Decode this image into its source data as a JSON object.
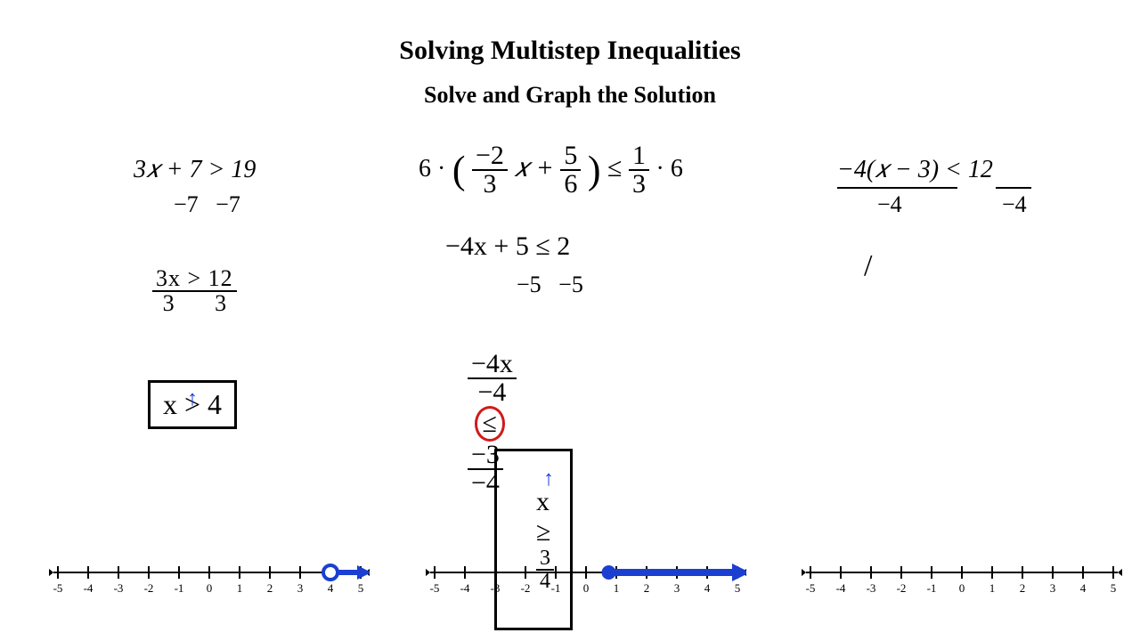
{
  "title": "Solving Multistep Inequalities",
  "subtitle": "Solve and Graph the Solution",
  "problem1": {
    "line1": "3𝑥 + 7 > 19",
    "step_sub": "−7   −7",
    "step_div": "3x > 12",
    "div_by": "3",
    "answer": "x > 4"
  },
  "problem2": {
    "mult_left": "6 ·",
    "frac_a_num": "−2",
    "frac_a_den": "3",
    "mid_x": "𝑥 +",
    "frac_b_num": "5",
    "frac_b_den": "6",
    "le": "≤",
    "frac_c_num": "1",
    "frac_c_den": "3",
    "mult_right": "· 6",
    "step2": "−4x + 5 ≤ 2",
    "step_sub": "−5   −5",
    "step3_lhs": "−4x",
    "step3_op": "≤",
    "step3_rhs": "−3",
    "div_by": "−4",
    "answer_lhs": "x",
    "answer_op": "≥",
    "answer_rhs_num": "3",
    "answer_rhs_den": "4"
  },
  "problem3": {
    "line1": "−4(𝑥 − 3) < 12",
    "div_left": "−4",
    "div_right": "−4",
    "mark": "/"
  },
  "numberline": {
    "min": -5,
    "max": 5,
    "tick_color": "#000000",
    "mark_color": "#1a3fd1",
    "line1": {
      "open_circle_at": 4,
      "arrow_right": true
    },
    "line2": {
      "filled_circle_at": 0.75,
      "arrow_right": true
    }
  },
  "colors": {
    "red": "#d11a1a",
    "blue": "#1a3fd1",
    "black": "#000000",
    "bg": "#ffffff"
  }
}
